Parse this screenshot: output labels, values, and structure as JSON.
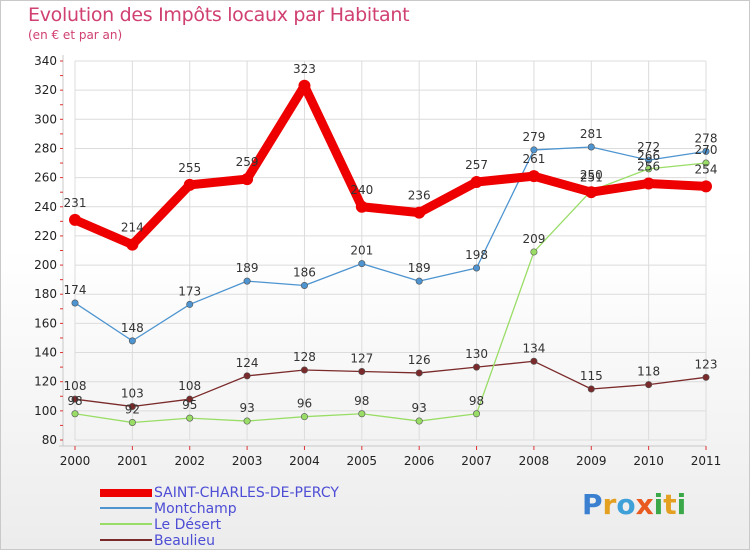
{
  "header": {
    "title": "Evolution des Impôts locaux par Habitant",
    "subtitle": "(en € et par an)"
  },
  "logo": {
    "text": "Proxiti"
  },
  "chart_data": {
    "type": "line",
    "title": "Evolution des Impôts locaux par Habitant",
    "subtitle": "(en € et par an)",
    "xlabel": "",
    "ylabel": "",
    "categories": [
      "2000",
      "2001",
      "2002",
      "2003",
      "2004",
      "2005",
      "2006",
      "2007",
      "2008",
      "2009",
      "2010",
      "2011"
    ],
    "ylim": [
      80,
      340
    ],
    "yticks": [
      80,
      100,
      120,
      140,
      160,
      180,
      200,
      220,
      240,
      260,
      280,
      300,
      320,
      340
    ],
    "grid": true,
    "legend_position": "bottom-left",
    "series": [
      {
        "name": "SAINT-CHARLES-DE-PERCY",
        "color": "#ee0000",
        "values": [
          231,
          214,
          255,
          259,
          323,
          240,
          236,
          257,
          261,
          250,
          256,
          254
        ],
        "labels": [
          "231",
          "214",
          "255",
          "259",
          "323",
          "240",
          "236",
          "257",
          "261",
          "250",
          "256",
          "254"
        ]
      },
      {
        "name": "Montchamp",
        "color": "#4d94d0",
        "values": [
          174,
          148,
          173,
          189,
          186,
          201,
          189,
          198,
          279,
          281,
          272,
          278
        ],
        "labels": [
          "174",
          "148",
          "173",
          "189",
          "186",
          "201",
          "189",
          "198",
          "279",
          "281",
          "272",
          "278"
        ]
      },
      {
        "name": "Le Désert",
        "color": "#99dd66",
        "values": [
          98,
          92,
          95,
          93,
          96,
          98,
          93,
          98,
          209,
          251,
          266,
          270
        ],
        "labels": [
          "98",
          "92",
          "95",
          "93",
          "96",
          "98",
          "93",
          "98",
          "209",
          "251",
          "266",
          "270"
        ]
      },
      {
        "name": "Beaulieu",
        "color": "#7a2a2a",
        "values": [
          108,
          103,
          108,
          124,
          128,
          127,
          126,
          130,
          134,
          115,
          118,
          123
        ],
        "labels": [
          "108",
          "103",
          "108",
          "124",
          "128",
          "127",
          "126",
          "130",
          "134",
          "115",
          "118",
          "123"
        ]
      }
    ]
  }
}
